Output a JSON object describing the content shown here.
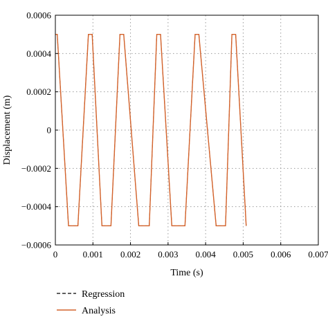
{
  "chart_data": {
    "type": "line",
    "xlabel": "Time (s)",
    "ylabel": "Displacement (m)",
    "xlim": [
      0,
      0.007
    ],
    "ylim": [
      -0.0006,
      0.0006
    ],
    "x_ticks": [
      "0",
      "0.001",
      "0.002",
      "0.003",
      "0.004",
      "0.005",
      "0.006",
      "0.007"
    ],
    "y_ticks": [
      "0.0006",
      "0.0004",
      "0.0002",
      "0",
      "−0.0002",
      "−0.0004",
      "−0.0006"
    ],
    "grid": true,
    "legend_position": "bottom-left",
    "series": [
      {
        "name": "Regression",
        "style": "dashed",
        "color": "#000000",
        "x": [
          0,
          5e-05,
          0.00035,
          0.0006,
          0.00088,
          0.00098,
          0.00124,
          0.00148,
          0.00172,
          0.00182,
          0.00222,
          0.0025,
          0.0027,
          0.0028,
          0.0031,
          0.00345,
          0.00372,
          0.00382,
          0.00428,
          0.00453,
          0.0047,
          0.0048,
          0.00508
        ],
        "y": [
          0.0005,
          0.0005,
          -0.0005,
          -0.0005,
          0.0005,
          0.0005,
          -0.0005,
          -0.0005,
          0.0005,
          0.0005,
          -0.0005,
          -0.0005,
          0.0005,
          0.0005,
          -0.0005,
          -0.0005,
          0.0005,
          0.0005,
          -0.0005,
          -0.0005,
          0.0005,
          0.0005,
          -0.0005
        ]
      },
      {
        "name": "Analysis",
        "style": "solid",
        "color": "#d4622a",
        "x": [
          0,
          5e-05,
          0.00035,
          0.0006,
          0.00088,
          0.00098,
          0.00124,
          0.00148,
          0.00172,
          0.00182,
          0.00222,
          0.0025,
          0.0027,
          0.0028,
          0.0031,
          0.00345,
          0.00372,
          0.00382,
          0.00428,
          0.00453,
          0.0047,
          0.0048,
          0.00508
        ],
        "y": [
          0.0005,
          0.0005,
          -0.0005,
          -0.0005,
          0.0005,
          0.0005,
          -0.0005,
          -0.0005,
          0.0005,
          0.0005,
          -0.0005,
          -0.0005,
          0.0005,
          0.0005,
          -0.0005,
          -0.0005,
          0.0005,
          0.0005,
          -0.0005,
          -0.0005,
          0.0005,
          0.0005,
          -0.0005
        ]
      }
    ]
  }
}
